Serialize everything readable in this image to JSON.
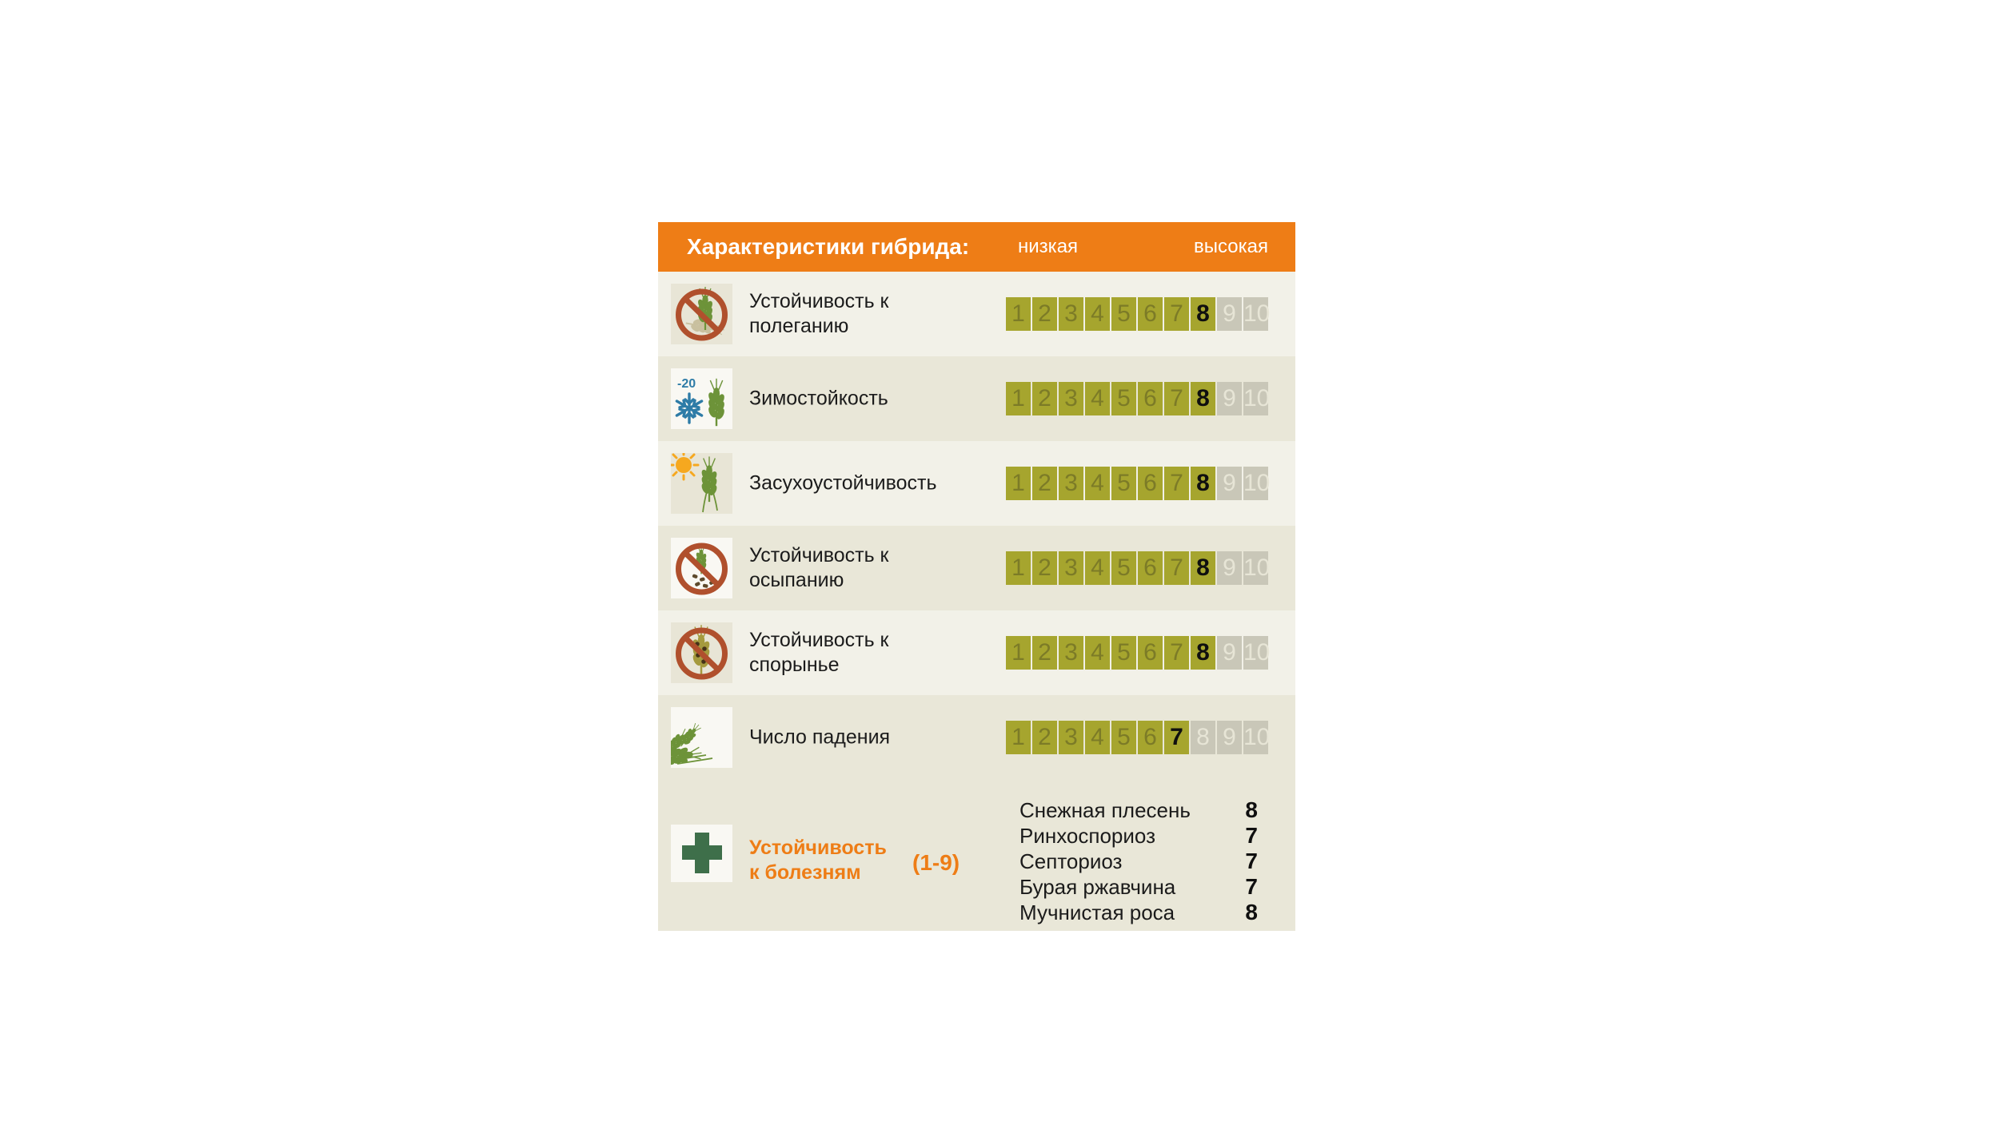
{
  "header": {
    "title": "Характеристики гибрида:",
    "low_label": "низкая",
    "high_label": "высокая"
  },
  "scale": {
    "min": 1,
    "max": 10
  },
  "rows": [
    {
      "label": "Устойчивость к полеганию",
      "value": 8,
      "icon": "no-lodging-icon"
    },
    {
      "label": "Зимостойкость",
      "value": 8,
      "icon": "winter-hardiness-icon"
    },
    {
      "label": "Засухоустойчивость",
      "value": 8,
      "icon": "drought-tolerance-icon"
    },
    {
      "label": "Устойчивость к осыпанию",
      "value": 8,
      "icon": "no-shattering-icon"
    },
    {
      "label": "Устойчивость к спорынье",
      "value": 8,
      "icon": "no-ergot-icon"
    },
    {
      "label": "Число падения",
      "value": 7,
      "icon": "falling-number-icon"
    }
  ],
  "diseases": {
    "title_line1": "Устойчивость",
    "title_line2": "к болезням",
    "scale_note": "(1-9)",
    "icon": "medical-cross-icon",
    "items": [
      {
        "name": "Снежная плесень",
        "value": "8"
      },
      {
        "name": "Ринхоспориоз",
        "value": "7"
      },
      {
        "name": "Септориоз",
        "value": "7"
      },
      {
        "name": "Бурая ржавчина",
        "value": "7"
      },
      {
        "name": "Мучнистая роса",
        "value": "8"
      }
    ]
  },
  "colors": {
    "accent_orange": "#ee7d16",
    "row_dark_beige": "#e9e7d8",
    "row_light_beige": "#f2f1e8",
    "cell_olive": "#a6a52e",
    "cell_olive_number": "#7c7b27",
    "cell_gray": "#c9c7b8",
    "cell_gray_number": "#e7e5d6",
    "value_number": "#0f0f0f",
    "prohibition_red": "#b0502d",
    "wheat_green": "#6d9339",
    "snowflake_blue": "#2e7ca7",
    "sun_yellow": "#f6a81f",
    "cross_green": "#3e6f4a"
  },
  "chart_data": {
    "type": "table",
    "title": "Характеристики гибрида:",
    "scale_labels": {
      "low": "низкая",
      "high": "высокая"
    },
    "scale_range": [
      1,
      10
    ],
    "categories": [
      "Устойчивость к полеганию",
      "Зимостойкость",
      "Засухоустойчивость",
      "Устойчивость к осыпанию",
      "Устойчивость к спорынье",
      "Число падения"
    ],
    "values": [
      8,
      8,
      8,
      8,
      8,
      7
    ],
    "disease_resistance": {
      "label": "Устойчивость к болезням",
      "scale_note": "(1-9)",
      "categories": [
        "Снежная плесень",
        "Ринхоспориоз",
        "Септориоз",
        "Бурая ржавчина",
        "Мучнистая роса"
      ],
      "values": [
        8,
        7,
        7,
        7,
        8
      ]
    }
  }
}
